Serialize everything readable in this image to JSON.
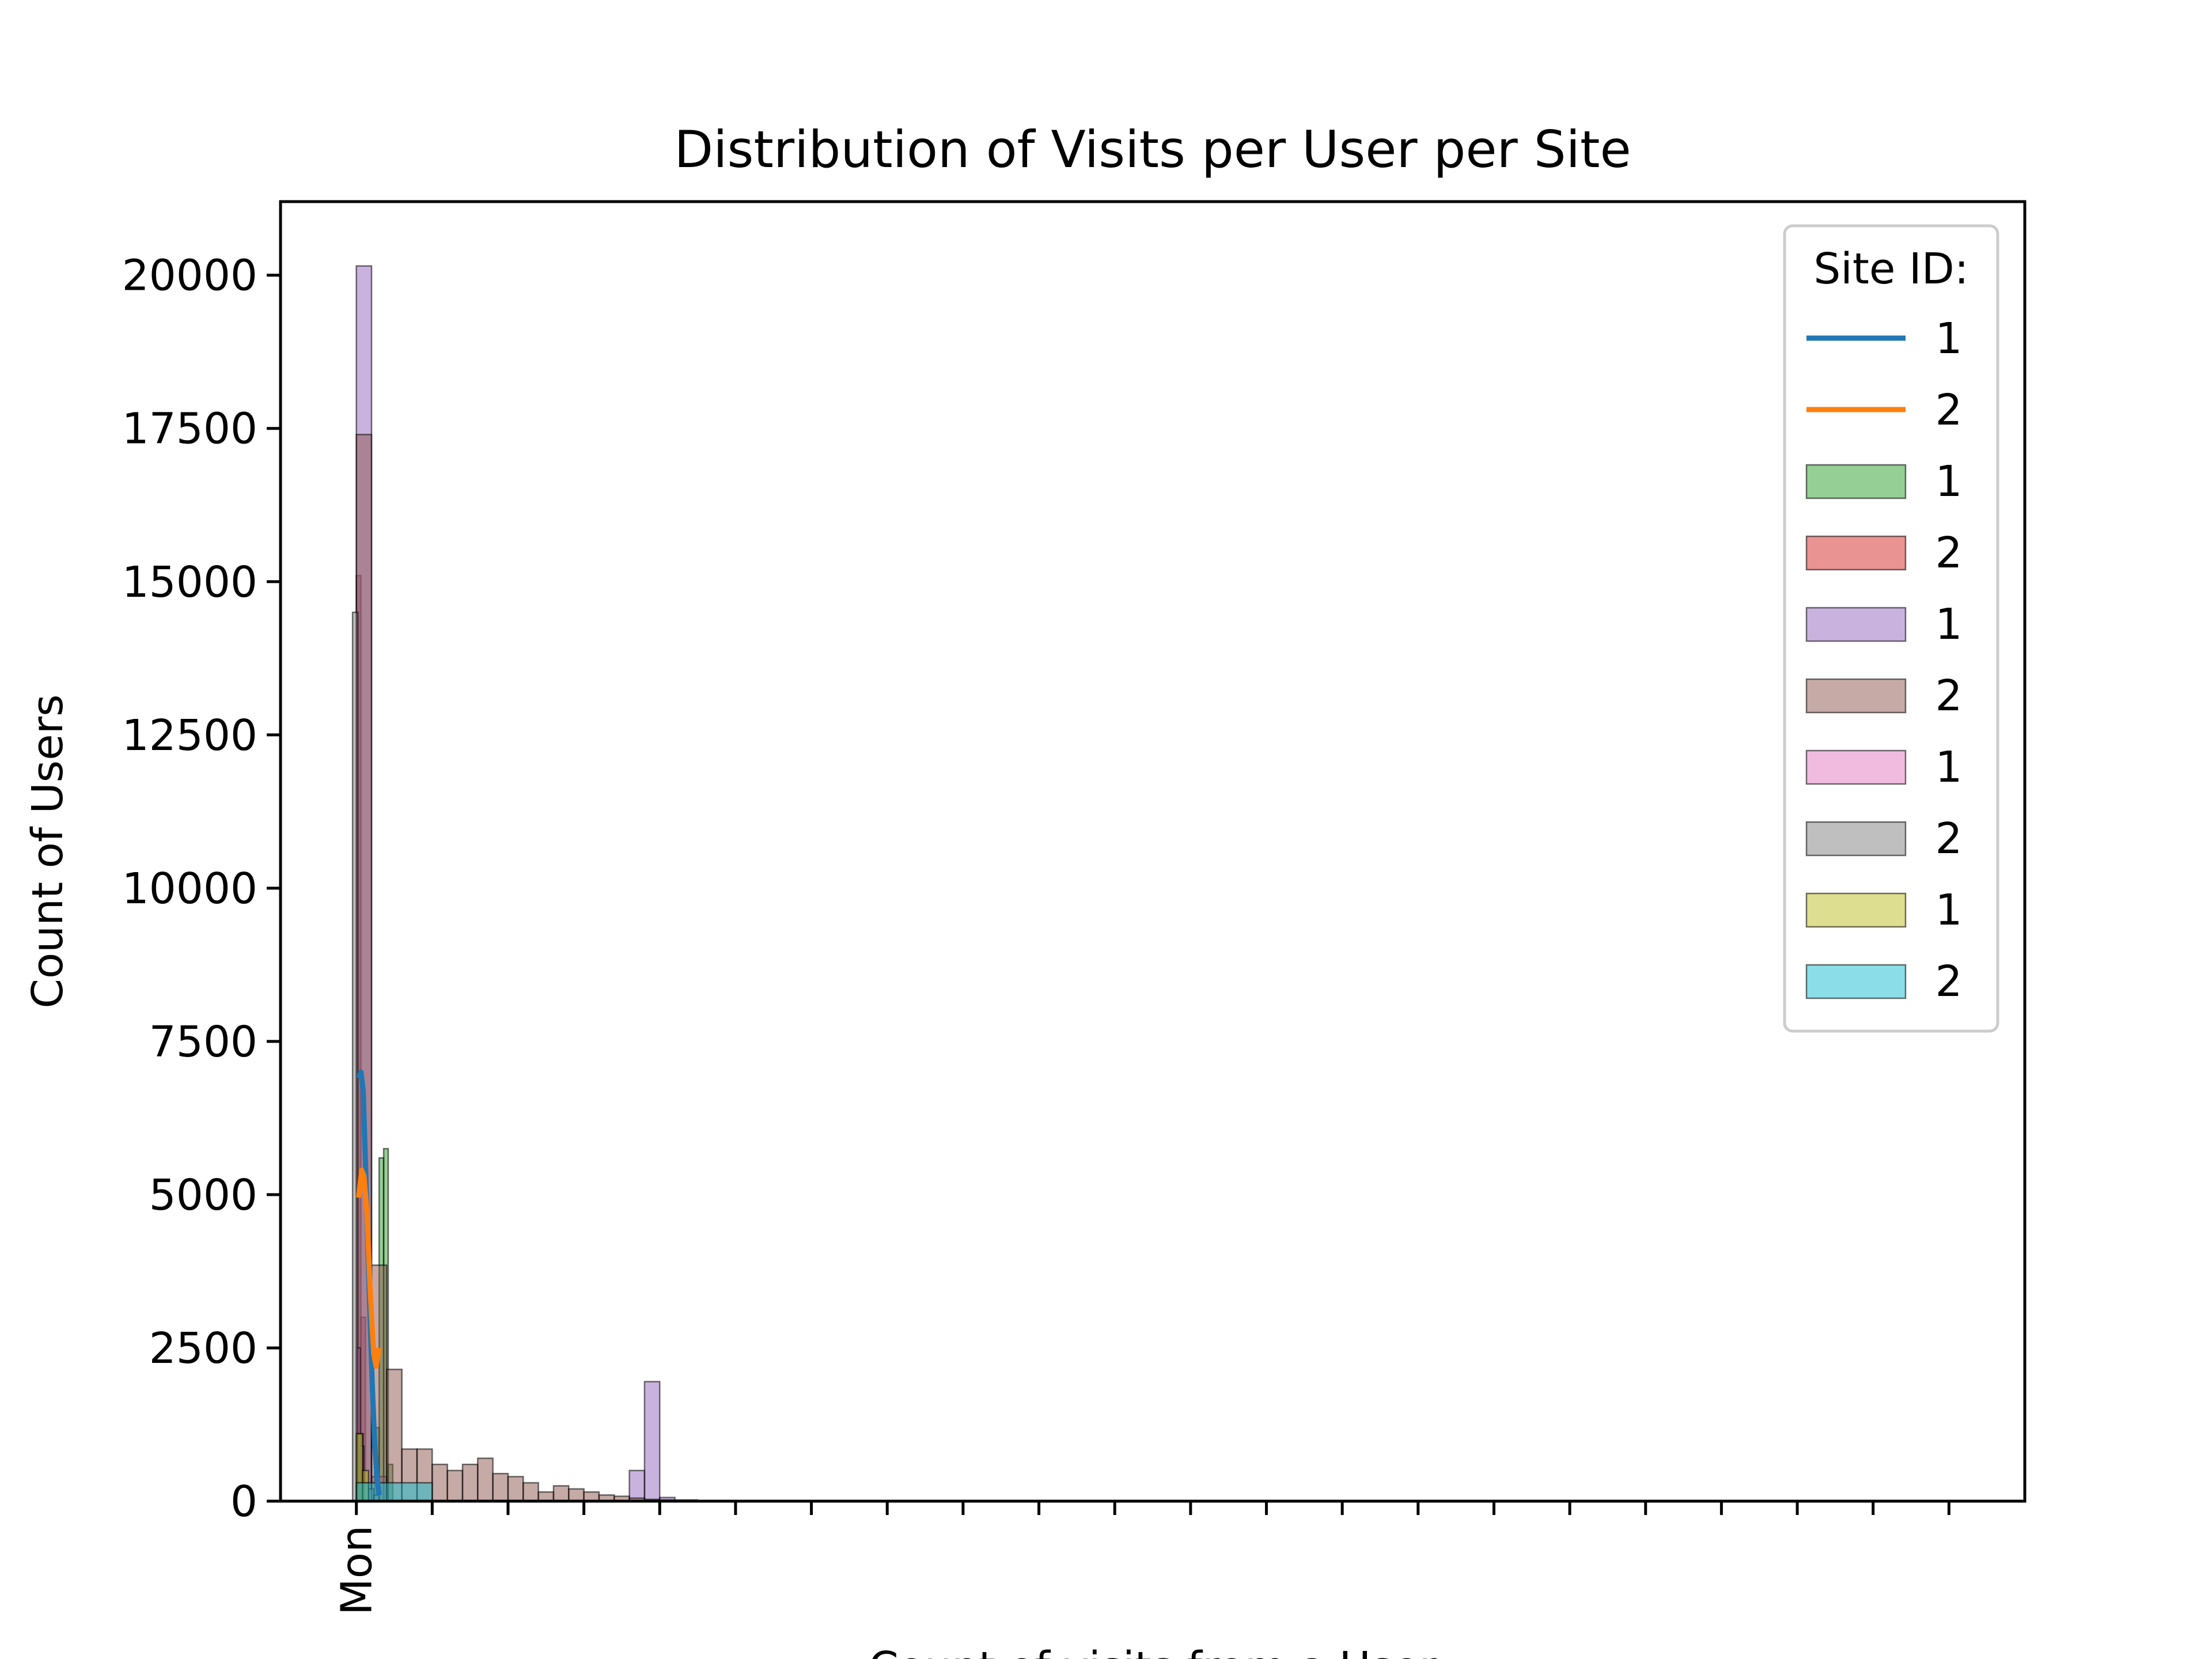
{
  "chart_data": {
    "type": "bar",
    "title": "Distribution of Visits per User per Site",
    "xlabel": "Count of visits from a User",
    "ylabel": "Count of Users",
    "ylim": [
      0,
      21200
    ],
    "xlim": [
      -1,
      22
    ],
    "grid": false,
    "yticks": [
      0,
      2500,
      5000,
      7500,
      10000,
      12500,
      15000,
      17500,
      20000
    ],
    "ytick_labels": [
      "0",
      "2500",
      "5000",
      "7500",
      "10000",
      "12500",
      "15000",
      "17500",
      "20000"
    ],
    "xticks": [
      0,
      1,
      2,
      3,
      4,
      5,
      6,
      7,
      8,
      9,
      10,
      11,
      12,
      13,
      14,
      15,
      16,
      17,
      18,
      19,
      20,
      21
    ],
    "xtick_labels": [
      "Mon",
      "",
      "",
      "",
      "",
      "",
      "",
      "",
      "",
      "",
      "",
      "",
      "",
      "",
      "",
      "",
      "",
      "",
      "",
      "",
      "",
      ""
    ],
    "legend": {
      "title": "Site ID:",
      "position": "top-right",
      "entries": [
        {
          "label": "1",
          "kind": "line",
          "color": "#1f77b4"
        },
        {
          "label": "2",
          "kind": "line",
          "color": "#ff7f0e"
        },
        {
          "label": "1",
          "kind": "patch",
          "color": "#2ca02c"
        },
        {
          "label": "2",
          "kind": "patch",
          "color": "#d62728"
        },
        {
          "label": "1",
          "kind": "patch",
          "color": "#9467bd"
        },
        {
          "label": "2",
          "kind": "patch",
          "color": "#8c564b"
        },
        {
          "label": "1",
          "kind": "patch",
          "color": "#e377c2"
        },
        {
          "label": "2",
          "kind": "patch",
          "color": "#7f7f7f"
        },
        {
          "label": "1",
          "kind": "patch",
          "color": "#bcbd22"
        },
        {
          "label": "2",
          "kind": "patch",
          "color": "#17becf"
        }
      ]
    },
    "histograms": [
      {
        "color": "#2ca02c",
        "bars": [
          [
            0.3,
            0.36,
            5600
          ],
          [
            0.36,
            0.42,
            5750
          ],
          [
            0.42,
            0.48,
            600
          ],
          [
            0.24,
            0.3,
            1200
          ]
        ]
      },
      {
        "color": "#d62728",
        "bars": [
          [
            0.0,
            0.06,
            15100
          ],
          [
            0.06,
            0.12,
            3000
          ]
        ]
      },
      {
        "color": "#9467bd",
        "bars": [
          [
            0.0,
            0.2,
            20150
          ],
          [
            3.6,
            3.8,
            500
          ],
          [
            3.8,
            4.0,
            1950
          ],
          [
            0.2,
            0.4,
            400
          ],
          [
            4.0,
            4.2,
            60
          ]
        ]
      },
      {
        "color": "#8c564b",
        "bars": [
          [
            0.0,
            0.2,
            17400
          ],
          [
            0.2,
            0.4,
            3850
          ],
          [
            0.4,
            0.6,
            2150
          ],
          [
            0.6,
            0.8,
            850
          ],
          [
            0.8,
            1.0,
            850
          ],
          [
            1.0,
            1.2,
            600
          ],
          [
            1.2,
            1.4,
            500
          ],
          [
            1.4,
            1.6,
            600
          ],
          [
            1.6,
            1.8,
            700
          ],
          [
            1.8,
            2.0,
            450
          ],
          [
            2.0,
            2.2,
            400
          ],
          [
            2.2,
            2.4,
            300
          ],
          [
            2.4,
            2.6,
            150
          ],
          [
            2.6,
            2.8,
            250
          ],
          [
            2.8,
            3.0,
            200
          ],
          [
            3.0,
            3.2,
            150
          ],
          [
            3.2,
            3.4,
            100
          ],
          [
            3.4,
            3.6,
            80
          ],
          [
            3.6,
            3.8,
            50
          ],
          [
            3.8,
            4.0,
            30
          ],
          [
            4.0,
            4.5,
            20
          ],
          [
            4.5,
            5.0,
            10
          ],
          [
            5.0,
            6.0,
            5
          ],
          [
            6.0,
            7.0,
            3
          ]
        ]
      },
      {
        "color": "#e377c2",
        "bars": [
          [
            0.0,
            0.05,
            2500
          ],
          [
            0.05,
            0.1,
            900
          ]
        ]
      },
      {
        "color": "#7f7f7f",
        "bars": [
          [
            -0.05,
            0.02,
            14500
          ],
          [
            0.02,
            0.09,
            1100
          ],
          [
            0.09,
            0.16,
            300
          ],
          [
            0.16,
            0.23,
            200
          ],
          [
            0.23,
            0.3,
            100
          ]
        ]
      },
      {
        "color": "#bcbd22",
        "bars": [
          [
            0.0,
            0.08,
            1100
          ],
          [
            0.08,
            0.16,
            500
          ]
        ]
      },
      {
        "color": "#17becf",
        "bars": [
          [
            0.0,
            1.0,
            300
          ]
        ]
      }
    ],
    "series": [
      {
        "name": "1",
        "color": "#1f77b4",
        "x": [
          0.03,
          0.06,
          0.09,
          0.12,
          0.15,
          0.18,
          0.21,
          0.24,
          0.27,
          0.3
        ],
        "y": [
          6900,
          7000,
          6700,
          5500,
          4200,
          3000,
          1900,
          1000,
          400,
          100
        ]
      },
      {
        "name": "2",
        "color": "#ff7f0e",
        "x": [
          0.03,
          0.07,
          0.1,
          0.14,
          0.18,
          0.21,
          0.23,
          0.26,
          0.3
        ],
        "y": [
          4950,
          5400,
          5300,
          4700,
          3500,
          2800,
          2400,
          2200,
          2500
        ]
      }
    ]
  }
}
